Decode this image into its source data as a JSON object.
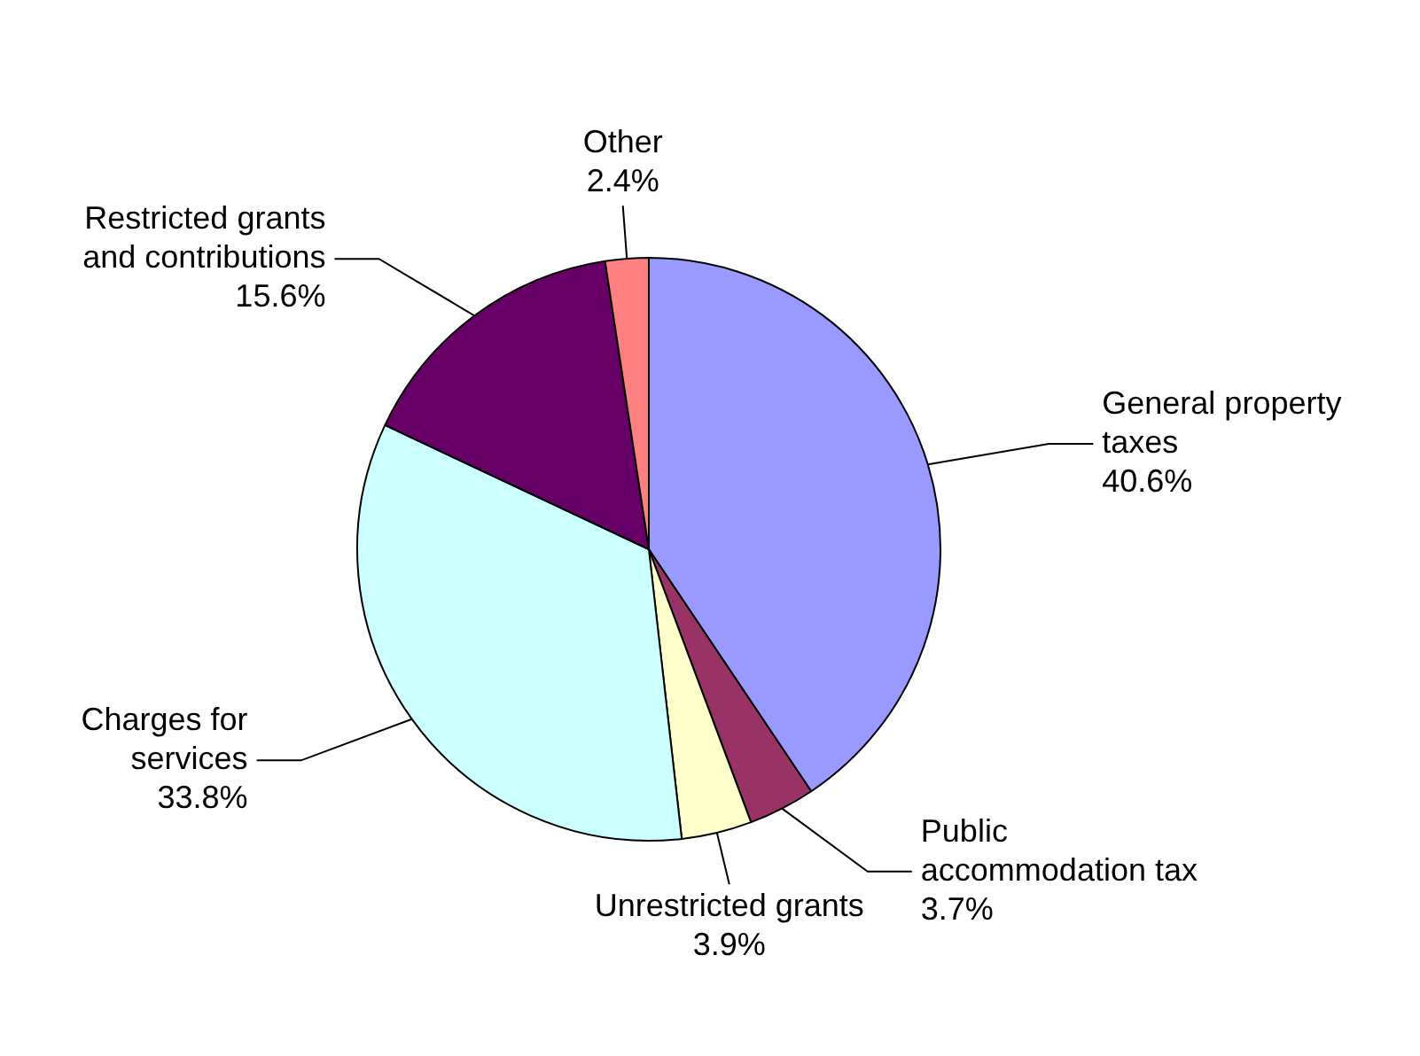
{
  "chart_data": {
    "type": "pie",
    "categories": [
      "General property taxes",
      "Public accommodation tax",
      "Unrestricted grants",
      "Charges for services",
      "Restricted grants and contributions",
      "Other"
    ],
    "values": [
      40.6,
      3.7,
      3.9,
      33.8,
      15.6,
      2.4
    ],
    "colors": [
      "#9999ff",
      "#993366",
      "#ffffcc",
      "#ccffff",
      "#660066",
      "#ff8080"
    ],
    "value_labels": [
      "40.6%",
      "3.7%",
      "3.9%",
      "33.8%",
      "15.6%",
      "2.4%"
    ],
    "legend": false
  }
}
